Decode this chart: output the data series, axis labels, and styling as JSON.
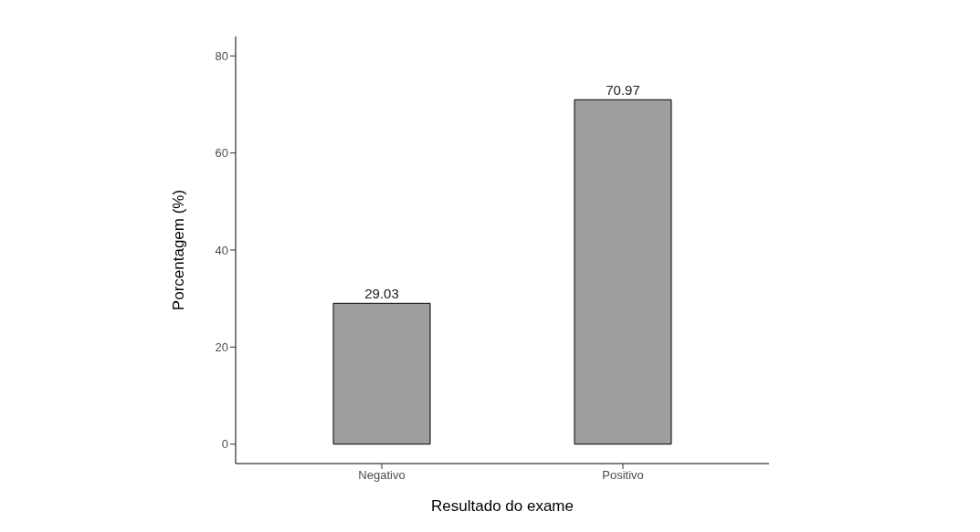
{
  "chart_data": {
    "type": "bar",
    "xlabel": "Resultado do exame",
    "ylabel": "Porcentagem (%)",
    "categories": [
      "Negativo",
      "Positivo"
    ],
    "values": [
      29.03,
      70.97
    ],
    "color": "#9e9e9e",
    "ylim": [
      -4,
      84
    ],
    "yticks": [
      0,
      20,
      40,
      60,
      80
    ],
    "data_labels": true
  }
}
